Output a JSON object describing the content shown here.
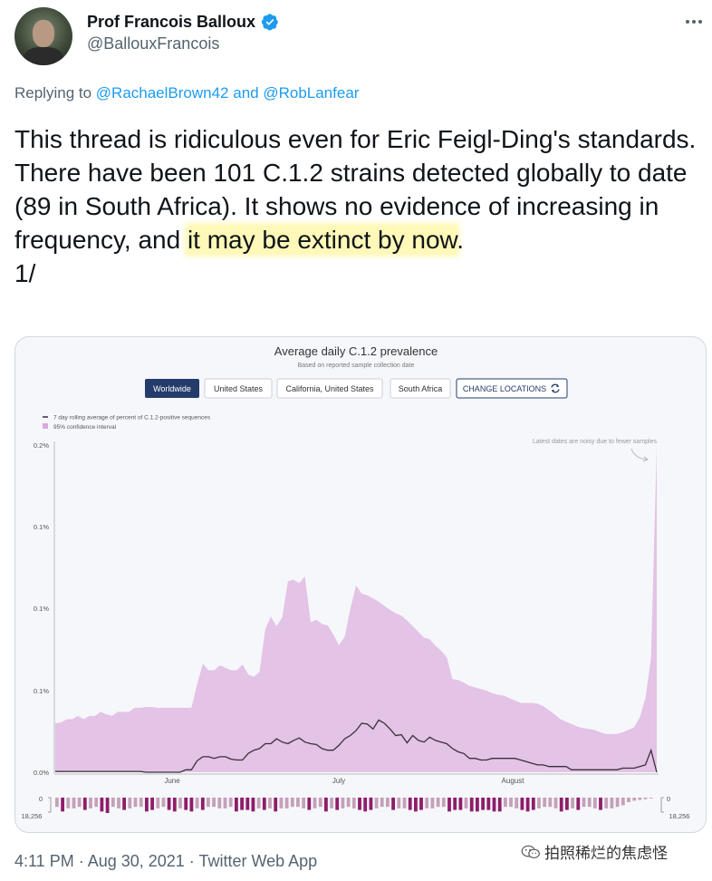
{
  "author": {
    "display_name": "Prof Francois Balloux",
    "handle": "@BallouxFrancois",
    "verified": true
  },
  "reply": {
    "prefix": "Replying to ",
    "user1": "@RachaelBrown42",
    "joiner": " and ",
    "user2": "@RobLanfear"
  },
  "tweet": {
    "part1": "This thread is ridiculous even for Eric Feigl-Ding's standards. There have been 101 C.1.2 strains detected globally to date (89 in South Africa). It shows no evidence of increasing in frequency, and ",
    "highlight": "it may be extinct by now",
    "part2": ".",
    "line2": "1/"
  },
  "embed": {
    "title": "Average daily C.1.2 prevalence",
    "subtitle": "Based on reported sample collection date",
    "buttons": {
      "worldwide": "Worldwide",
      "us": "United States",
      "california": "California, United States",
      "south_africa": "South Africa",
      "change": "CHANGE LOCATIONS"
    },
    "colors": {
      "band": "#e3c3e6",
      "line": "#3b2f3b",
      "active_btn": "#233c6c",
      "bar_dark": "#8e1d6a",
      "bar_light": "#c4a1b8"
    }
  },
  "chart_data": {
    "type": "area",
    "legend": [
      "7 day rolling average of percent of C.1.2-positive sequences",
      "95% confidence interval"
    ],
    "annotation": "Latest dates are noisy due to fewer samples",
    "y_tick_labels": [
      "0.2%",
      "0.1%",
      "0.1%",
      "0.1%",
      "0.0%"
    ],
    "ylim": [
      0,
      0.2
    ],
    "x_tick_labels": [
      "June",
      "July",
      "August"
    ],
    "counts_axis_labels": [
      "0",
      "18,256",
      "0",
      "18,256"
    ],
    "series": [
      {
        "name": "7 day rolling average of percent of C.1.2-positive sequences",
        "values": [
          0.0005,
          0.0005,
          0.0005,
          0.0005,
          0.0005,
          0.0005,
          0.0005,
          0.0005,
          0.0005,
          0.0005,
          0.0005,
          0.0005,
          0.0005,
          0.0005,
          0.0005,
          0.0005,
          0,
          0,
          0,
          0,
          0,
          0,
          0,
          0.0015,
          0.0015,
          0.007,
          0.0095,
          0.0095,
          0.0085,
          0.0095,
          0.0095,
          0.008,
          0.0075,
          0.0075,
          0.0115,
          0.0135,
          0.0145,
          0.0175,
          0.0175,
          0.0205,
          0.0185,
          0.0175,
          0.0195,
          0.021,
          0.0185,
          0.0175,
          0.017,
          0.0145,
          0.0135,
          0.0135,
          0.0165,
          0.0205,
          0.0225,
          0.0255,
          0.03,
          0.0295,
          0.0265,
          0.032,
          0.03,
          0.0265,
          0.0225,
          0.023,
          0.018,
          0.0225,
          0.0195,
          0.0185,
          0.0215,
          0.0195,
          0.0185,
          0.0175,
          0.0145,
          0.0125,
          0.0115,
          0.0085,
          0.0085,
          0.0075,
          0.0075,
          0.0085,
          0.0085,
          0.0085,
          0.0085,
          0.0085,
          0.0075,
          0.0065,
          0.0055,
          0.0045,
          0.0045,
          0.0035,
          0.0035,
          0.0035,
          0.0035,
          0.0015,
          0.0015,
          0.0015,
          0.0015,
          0.0015,
          0.0015,
          0.0015,
          0.0015,
          0.0015,
          0.0025,
          0.0025,
          0.0025,
          0.0035,
          0.0045,
          0.0135,
          0
        ]
      },
      {
        "name": "95% confidence interval",
        "upper": [
          0.03,
          0.0305,
          0.0325,
          0.0325,
          0.0345,
          0.0325,
          0.0345,
          0.0345,
          0.037,
          0.0355,
          0.0345,
          0.037,
          0.037,
          0.037,
          0.0395,
          0.0395,
          0.04,
          0.04,
          0.0395,
          0.0395,
          0.0395,
          0.0395,
          0.0395,
          0.0395,
          0.0395,
          0.054,
          0.0665,
          0.0625,
          0.0625,
          0.0655,
          0.064,
          0.0625,
          0.0625,
          0.066,
          0.06,
          0.0585,
          0.0615,
          0.0875,
          0.0955,
          0.0895,
          0.095,
          0.117,
          0.118,
          0.116,
          0.12,
          0.092,
          0.0935,
          0.091,
          0.09,
          0.0845,
          0.078,
          0.083,
          0.1,
          0.1145,
          0.1095,
          0.1085,
          0.1065,
          0.1045,
          0.102,
          0.0995,
          0.0975,
          0.096,
          0.093,
          0.0895,
          0.086,
          0.0825,
          0.0815,
          0.0775,
          0.0745,
          0.0705,
          0.057,
          0.0565,
          0.055,
          0.053,
          0.052,
          0.051,
          0.05,
          0.0485,
          0.0475,
          0.047,
          0.0455,
          0.044,
          0.0425,
          0.0425,
          0.0425,
          0.042,
          0.0405,
          0.038,
          0.0355,
          0.0325,
          0.031,
          0.0295,
          0.028,
          0.027,
          0.0265,
          0.026,
          0.0245,
          0.0235,
          0.0235,
          0.0235,
          0.0245,
          0.026,
          0.0275,
          0.0335,
          0.0455,
          0.07,
          0.2
        ]
      }
    ],
    "counts_bars": {
      "note": "daily sample counts shown as bars below the chart",
      "values": [
        0.6,
        0.9,
        0.7,
        0.7,
        0.6,
        0.8,
        0.7,
        0.6,
        0.9,
        1.0,
        0.6,
        0.7,
        0.8,
        0.7,
        0.6,
        0.6,
        0.9,
        0.8,
        0.7,
        0.6,
        0.8,
        0.9,
        0.7,
        0.8,
        0.9,
        0.7,
        0.8,
        0.6,
        0.6,
        0.7,
        0.7,
        0.6,
        0.9,
        0.8,
        0.8,
        0.9,
        0.7,
        0.8,
        0.7,
        0.9,
        0.7,
        0.7,
        0.6,
        0.6,
        0.7,
        0.8,
        0.7,
        0.6,
        0.9,
        0.7,
        0.8,
        0.7,
        0.6,
        0.7,
        0.8,
        0.9,
        0.8,
        0.7,
        0.6,
        0.6,
        0.8,
        0.7,
        0.7,
        0.8,
        0.9,
        0.8,
        0.7,
        0.7,
        0.6,
        0.6,
        0.9,
        0.8,
        0.8,
        0.7,
        0.9,
        0.9,
        0.8,
        0.8,
        0.9,
        0.9,
        0.6,
        0.6,
        0.7,
        0.8,
        0.9,
        0.8,
        0.7,
        0.6,
        0.6,
        0.7,
        0.9,
        0.8,
        0.7,
        0.8,
        0.6,
        0.6,
        0.7,
        0.8,
        0.7,
        0.7,
        0.6,
        0.5,
        0.3,
        0.2,
        0.15,
        0.1,
        0.05
      ]
    }
  },
  "footer": {
    "timestamp": "4:11 PM · Aug 30, 2021 · Twitter Web App"
  },
  "watermark": {
    "text": "拍照稀烂的焦虑怪"
  }
}
